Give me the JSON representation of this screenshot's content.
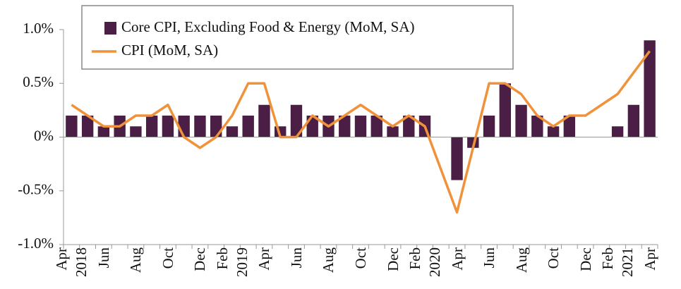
{
  "chart_data": {
    "type": "bar",
    "categories": [
      "Apr 2018",
      null,
      "Jun",
      null,
      "Aug",
      null,
      "Oct",
      null,
      "Dec",
      null,
      "Feb 2019",
      null,
      "Apr",
      null,
      "Jun",
      null,
      "Aug",
      null,
      "Oct",
      null,
      "Dec",
      null,
      "Feb 2020",
      null,
      "Apr",
      null,
      "Jun",
      null,
      "Aug",
      null,
      "Oct",
      null,
      "Dec",
      null,
      "Feb 2021",
      null,
      "Apr"
    ],
    "series": [
      {
        "name": "Core CPI, Excluding Food & Energy (MoM, SA)",
        "type": "bar",
        "color": "#4b1f45",
        "values": [
          0.2,
          0.2,
          0.1,
          0.2,
          0.1,
          0.2,
          0.2,
          0.2,
          0.2,
          0.2,
          0.1,
          0.2,
          0.3,
          0.1,
          0.3,
          0.2,
          0.2,
          0.2,
          0.2,
          0.2,
          0.1,
          0.2,
          0.2,
          0,
          -0.4,
          -0.1,
          0.2,
          0.5,
          0.3,
          0.2,
          0.1,
          0.2,
          0,
          0,
          0.1,
          0.3,
          0.9
        ]
      },
      {
        "name": "CPI (MoM, SA)",
        "type": "line",
        "color": "#f0923a",
        "values": [
          0.3,
          0.2,
          0.1,
          0.1,
          0.2,
          0.2,
          0.3,
          0,
          -0.1,
          0,
          0.2,
          0.5,
          0.5,
          0,
          0,
          0.2,
          0.1,
          0.2,
          0.3,
          0.2,
          0.1,
          0.2,
          0.1,
          -0.3,
          -0.7,
          -0.1,
          0.5,
          0.5,
          0.4,
          0.2,
          0.1,
          0.2,
          0.2,
          0.3,
          0.4,
          0.6,
          0.8
        ]
      }
    ],
    "ylim": [
      -1,
      1
    ],
    "yticks": [
      {
        "value": -1,
        "label": "-1.0%"
      },
      {
        "value": -0.5,
        "label": "-0.5%"
      },
      {
        "value": 0,
        "label": "0%"
      },
      {
        "value": 0.5,
        "label": "0.5%"
      },
      {
        "value": 1,
        "label": "1.0%"
      }
    ],
    "grid": false
  }
}
